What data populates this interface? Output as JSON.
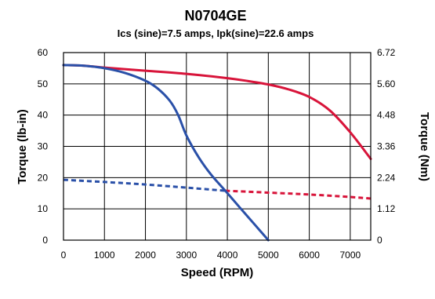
{
  "chart_data": {
    "type": "line",
    "title": "N0704GE",
    "subtitle": "Ics (sine)=7.5 amps, Ipk(sine)=22.6 amps",
    "xlabel": "Speed (RPM)",
    "ylabel": "Torque (lb-in)",
    "y2label": "Torque (Nm)",
    "xlim": [
      0,
      7500
    ],
    "ylim": [
      0,
      60
    ],
    "y2lim": [
      0,
      6.72
    ],
    "x_ticks": [
      "0",
      "1000",
      "2000",
      "3000",
      "4000",
      "5000",
      "6000",
      "7000"
    ],
    "x_tick_values": [
      0,
      1000,
      2000,
      3000,
      4000,
      5000,
      6000,
      7000
    ],
    "y_ticks": [
      "0",
      "10",
      "20",
      "30",
      "40",
      "50",
      "60"
    ],
    "y_tick_values": [
      0,
      10,
      20,
      30,
      40,
      50,
      60
    ],
    "y2_ticks": [
      "0",
      "1.12",
      "2.24",
      "3.36",
      "4.48",
      "5.60",
      "6.72"
    ],
    "grid": true,
    "legend": "none",
    "series": [
      {
        "color": "#D8143A",
        "style": "solid",
        "x": [
          0,
          500,
          1000,
          2000,
          3000,
          4000,
          4500,
          5000,
          5500,
          6000,
          6500,
          7000,
          7500
        ],
        "y": [
          56,
          55.8,
          55.2,
          54.2,
          53.2,
          51.8,
          50.9,
          49.8,
          48.2,
          45.8,
          41.5,
          34.5,
          26
        ]
      },
      {
        "color": "#D8143A",
        "style": "dashed",
        "x": [
          3950,
          5000,
          6000,
          7000,
          7500
        ],
        "y": [
          15.8,
          15.2,
          14.6,
          13.8,
          13.3
        ]
      },
      {
        "color": "#2A50A8",
        "style": "solid",
        "x": [
          0,
          500,
          1000,
          1500,
          2000,
          2300,
          2600,
          2800,
          3000,
          3300,
          3600,
          3950,
          4300,
          4700,
          5000
        ],
        "y": [
          56,
          55.8,
          55,
          53.5,
          51,
          48.5,
          44.5,
          40,
          33.5,
          26.5,
          21,
          15.8,
          10.5,
          4.5,
          0
        ]
      },
      {
        "color": "#2A50A8",
        "style": "dashed",
        "x": [
          0,
          1000,
          2000,
          3000,
          3950
        ],
        "y": [
          19.3,
          18.6,
          17.8,
          16.8,
          15.8
        ]
      }
    ]
  }
}
